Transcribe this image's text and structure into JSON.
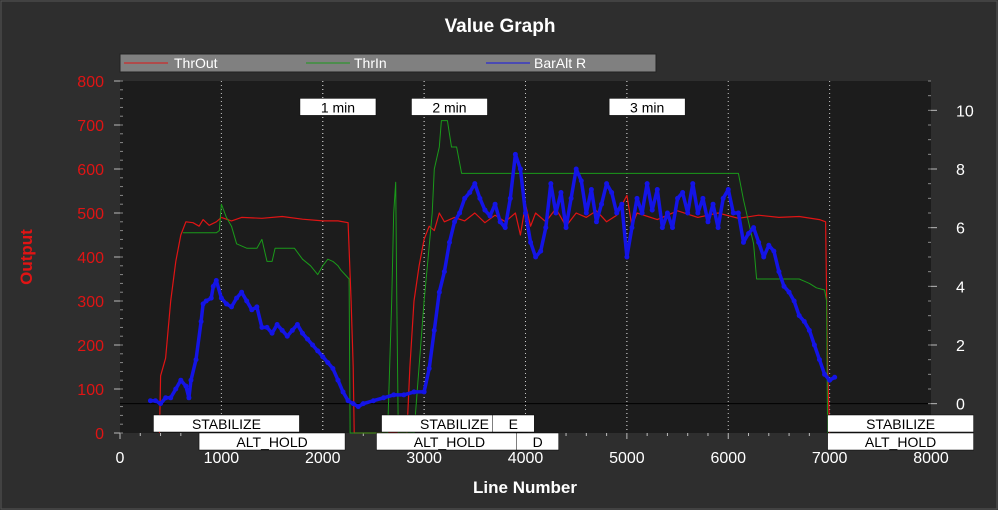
{
  "chart_data": {
    "type": "line",
    "title": "Value Graph",
    "xlabel": "Line Number",
    "ylabel": "Output",
    "xlim": [
      0,
      8000
    ],
    "ylim": [
      0,
      800
    ],
    "y2lim": [
      -1,
      11
    ],
    "x_ticks": [
      "0",
      "1000",
      "2000",
      "3000",
      "4000",
      "5000",
      "6000",
      "7000",
      "8000"
    ],
    "y_ticks": [
      "0",
      "100",
      "200",
      "300",
      "400",
      "500",
      "600",
      "700",
      "800"
    ],
    "y2_ticks": [
      "0",
      "2",
      "4",
      "6",
      "8",
      "10"
    ],
    "legend_position": "top",
    "grid": false,
    "colors": {
      "background": "#2e2e2e",
      "plot": "#1c1c1c",
      "thrOut": "#e01414",
      "thrIn": "#1a9a1a",
      "barAlt": "#1414e6",
      "axis_left": "#e01414",
      "axis_right": "#ffffff",
      "legend_bg": "#808080"
    },
    "series": [
      {
        "name": "ThrOut",
        "axis": "left",
        "points": [
          [
            390,
            0
          ],
          [
            400,
            130
          ],
          [
            450,
            170
          ],
          [
            500,
            300
          ],
          [
            550,
            390
          ],
          [
            600,
            450
          ],
          [
            650,
            480
          ],
          [
            720,
            478
          ],
          [
            780,
            470
          ],
          [
            820,
            485
          ],
          [
            880,
            472
          ],
          [
            950,
            480
          ],
          [
            1000,
            490
          ],
          [
            1100,
            482
          ],
          [
            1200,
            490
          ],
          [
            1400,
            488
          ],
          [
            1600,
            492
          ],
          [
            1800,
            486
          ],
          [
            2000,
            482
          ],
          [
            2150,
            482
          ],
          [
            2250,
            478
          ],
          [
            2280,
            300
          ],
          [
            2300,
            150
          ],
          [
            2310,
            0
          ],
          [
            2830,
            0
          ],
          [
            2860,
            150
          ],
          [
            2900,
            300
          ],
          [
            2950,
            380
          ],
          [
            3000,
            440
          ],
          [
            3050,
            470
          ],
          [
            3100,
            460
          ],
          [
            3150,
            500
          ],
          [
            3200,
            480
          ],
          [
            3300,
            490
          ],
          [
            3400,
            482
          ],
          [
            3500,
            500
          ],
          [
            3600,
            478
          ],
          [
            3700,
            495
          ],
          [
            3800,
            480
          ],
          [
            3900,
            500
          ],
          [
            3950,
            450
          ],
          [
            4000,
            520
          ],
          [
            4050,
            470
          ],
          [
            4100,
            500
          ],
          [
            4200,
            480
          ],
          [
            4300,
            510
          ],
          [
            4400,
            470
          ],
          [
            4500,
            500
          ],
          [
            4600,
            490
          ],
          [
            4700,
            505
          ],
          [
            4800,
            480
          ],
          [
            4900,
            495
          ],
          [
            5000,
            540
          ],
          [
            5050,
            470
          ],
          [
            5100,
            500
          ],
          [
            5300,
            485
          ],
          [
            5500,
            505
          ],
          [
            5700,
            490
          ],
          [
            5900,
            500
          ],
          [
            6100,
            488
          ],
          [
            6300,
            495
          ],
          [
            6500,
            490
          ],
          [
            6700,
            492
          ],
          [
            6900,
            485
          ],
          [
            6960,
            480
          ],
          [
            6980,
            150
          ],
          [
            7000,
            0
          ]
        ]
      },
      {
        "name": "ThrIn",
        "axis": "left",
        "points": [
          [
            620,
            455
          ],
          [
            950,
            455
          ],
          [
            980,
            460
          ],
          [
            1000,
            520
          ],
          [
            1050,
            490
          ],
          [
            1100,
            470
          ],
          [
            1150,
            430
          ],
          [
            1250,
            420
          ],
          [
            1350,
            420
          ],
          [
            1400,
            440
          ],
          [
            1450,
            390
          ],
          [
            1500,
            390
          ],
          [
            1530,
            420
          ],
          [
            1620,
            420
          ],
          [
            1720,
            420
          ],
          [
            1800,
            395
          ],
          [
            1880,
            380
          ],
          [
            1950,
            360
          ],
          [
            2000,
            380
          ],
          [
            2050,
            395
          ],
          [
            2100,
            390
          ],
          [
            2150,
            380
          ],
          [
            2180,
            370
          ],
          [
            2220,
            360
          ],
          [
            2260,
            350
          ],
          [
            2270,
            0
          ],
          [
            2640,
            0
          ],
          [
            2680,
            300
          ],
          [
            2700,
            500
          ],
          [
            2720,
            570
          ],
          [
            2730,
            300
          ],
          [
            2745,
            0
          ],
          [
            2900,
            0
          ],
          [
            3000,
            300
          ],
          [
            3040,
            400
          ],
          [
            3080,
            500
          ],
          [
            3100,
            600
          ],
          [
            3150,
            650
          ],
          [
            3170,
            710
          ],
          [
            3230,
            710
          ],
          [
            3270,
            650
          ],
          [
            3320,
            650
          ],
          [
            3370,
            590
          ],
          [
            4000,
            590
          ],
          [
            5000,
            590
          ],
          [
            6000,
            590
          ],
          [
            6100,
            590
          ],
          [
            6150,
            530
          ],
          [
            6200,
            480
          ],
          [
            6250,
            430
          ],
          [
            6280,
            350
          ],
          [
            6700,
            350
          ],
          [
            6750,
            345
          ],
          [
            6800,
            340
          ],
          [
            6870,
            330
          ],
          [
            6950,
            325
          ],
          [
            6970,
            300
          ],
          [
            6980,
            0
          ]
        ]
      },
      {
        "name": "BarAlt R",
        "axis": "right",
        "points": [
          [
            300,
            0.1
          ],
          [
            350,
            0.1
          ],
          [
            400,
            0.0
          ],
          [
            450,
            0.2
          ],
          [
            500,
            0.2
          ],
          [
            550,
            0.5
          ],
          [
            600,
            0.8
          ],
          [
            650,
            0.6
          ],
          [
            680,
            0.2
          ],
          [
            700,
            0.8
          ],
          [
            750,
            1.5
          ],
          [
            800,
            2.8
          ],
          [
            820,
            3.4
          ],
          [
            850,
            3.5
          ],
          [
            900,
            3.6
          ],
          [
            920,
            4.0
          ],
          [
            950,
            4.2
          ],
          [
            1000,
            3.6
          ],
          [
            1050,
            3.4
          ],
          [
            1100,
            3.3
          ],
          [
            1150,
            3.6
          ],
          [
            1200,
            3.8
          ],
          [
            1250,
            3.5
          ],
          [
            1300,
            3.2
          ],
          [
            1350,
            3.3
          ],
          [
            1400,
            2.6
          ],
          [
            1450,
            2.6
          ],
          [
            1500,
            2.4
          ],
          [
            1550,
            2.7
          ],
          [
            1600,
            2.5
          ],
          [
            1650,
            2.3
          ],
          [
            1700,
            2.5
          ],
          [
            1750,
            2.7
          ],
          [
            1800,
            2.4
          ],
          [
            1850,
            2.2
          ],
          [
            1900,
            2.0
          ],
          [
            1950,
            1.8
          ],
          [
            2000,
            1.6
          ],
          [
            2050,
            1.4
          ],
          [
            2100,
            1.2
          ],
          [
            2150,
            0.8
          ],
          [
            2200,
            0.4
          ],
          [
            2250,
            0.1
          ],
          [
            2300,
            0.0
          ],
          [
            2350,
            -0.1
          ],
          [
            2400,
            0.0
          ],
          [
            2500,
            0.1
          ],
          [
            2600,
            0.2
          ],
          [
            2700,
            0.3
          ],
          [
            2800,
            0.3
          ],
          [
            2900,
            0.4
          ],
          [
            3000,
            0.4
          ],
          [
            3050,
            1.2
          ],
          [
            3100,
            2.5
          ],
          [
            3150,
            3.8
          ],
          [
            3200,
            4.5
          ],
          [
            3250,
            5.5
          ],
          [
            3300,
            6.2
          ],
          [
            3350,
            6.5
          ],
          [
            3400,
            7.0
          ],
          [
            3450,
            7.2
          ],
          [
            3500,
            7.5
          ],
          [
            3550,
            7.0
          ],
          [
            3600,
            6.6
          ],
          [
            3650,
            6.4
          ],
          [
            3700,
            6.8
          ],
          [
            3750,
            6.2
          ],
          [
            3800,
            6.0
          ],
          [
            3850,
            7.0
          ],
          [
            3900,
            8.5
          ],
          [
            3950,
            8.0
          ],
          [
            4000,
            6.5
          ],
          [
            4050,
            5.5
          ],
          [
            4100,
            5.0
          ],
          [
            4150,
            5.2
          ],
          [
            4200,
            6.0
          ],
          [
            4250,
            7.5
          ],
          [
            4300,
            6.5
          ],
          [
            4350,
            7.2
          ],
          [
            4400,
            6.0
          ],
          [
            4450,
            7.0
          ],
          [
            4500,
            8.0
          ],
          [
            4550,
            7.6
          ],
          [
            4600,
            6.5
          ],
          [
            4650,
            7.3
          ],
          [
            4700,
            6.2
          ],
          [
            4750,
            6.8
          ],
          [
            4800,
            7.5
          ],
          [
            4850,
            7.2
          ],
          [
            4900,
            6.5
          ],
          [
            4950,
            6.8
          ],
          [
            5000,
            5.0
          ],
          [
            5050,
            6.0
          ],
          [
            5100,
            7.0
          ],
          [
            5150,
            6.5
          ],
          [
            5200,
            7.5
          ],
          [
            5250,
            6.6
          ],
          [
            5300,
            7.3
          ],
          [
            5350,
            6.0
          ],
          [
            5400,
            6.5
          ],
          [
            5450,
            6.0
          ],
          [
            5500,
            7.0
          ],
          [
            5550,
            7.2
          ],
          [
            5600,
            6.5
          ],
          [
            5650,
            7.5
          ],
          [
            5700,
            6.5
          ],
          [
            5750,
            7.0
          ],
          [
            5800,
            6.2
          ],
          [
            5850,
            6.8
          ],
          [
            5900,
            6.0
          ],
          [
            5950,
            7.0
          ],
          [
            6000,
            7.3
          ],
          [
            6050,
            6.5
          ],
          [
            6100,
            6.5
          ],
          [
            6150,
            5.5
          ],
          [
            6200,
            5.8
          ],
          [
            6250,
            6.0
          ],
          [
            6300,
            5.5
          ],
          [
            6350,
            5.0
          ],
          [
            6400,
            5.4
          ],
          [
            6450,
            5.2
          ],
          [
            6500,
            4.5
          ],
          [
            6550,
            4.0
          ],
          [
            6600,
            3.8
          ],
          [
            6650,
            3.5
          ],
          [
            6700,
            3.0
          ],
          [
            6750,
            2.8
          ],
          [
            6800,
            2.5
          ],
          [
            6850,
            2.0
          ],
          [
            6900,
            1.5
          ],
          [
            6950,
            1.0
          ],
          [
            7000,
            0.8
          ],
          [
            7050,
            0.9
          ]
        ]
      }
    ],
    "annotations": [
      {
        "text": "1 min",
        "x": 2150,
        "y": 10.1
      },
      {
        "text": "2 min",
        "x": 3250,
        "y": 10.1
      },
      {
        "text": "3 min",
        "x": 5200,
        "y": 10.1
      }
    ],
    "mode_labels": [
      {
        "text": "STABILIZE",
        "x": 1050,
        "row": 1
      },
      {
        "text": "ALT_HOLD",
        "x": 1500,
        "row": 2
      },
      {
        "text": "STABILIZE",
        "x": 3300,
        "row": 1
      },
      {
        "text": "E",
        "x": 3880,
        "row": 1
      },
      {
        "text": "ALT_HOLD",
        "x": 3250,
        "row": 2
      },
      {
        "text": "D",
        "x": 4120,
        "row": 2
      },
      {
        "text": "STABILIZE",
        "x": 7700,
        "row": 1
      },
      {
        "text": "ALT_HOLD",
        "x": 7700,
        "row": 2
      }
    ],
    "vlines_x": [
      1000,
      2000,
      3000,
      4000,
      5000,
      6000,
      7000
    ],
    "time_markers_x": [
      2000,
      3000,
      5000
    ]
  }
}
